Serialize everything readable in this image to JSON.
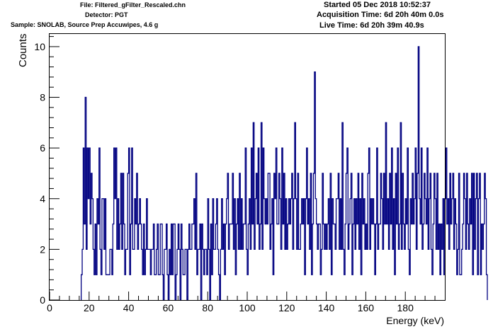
{
  "header": {
    "file": "File: Filtered_gFilter_Rescaled.chn",
    "detector": "Detector: PGT",
    "sample": "Sample: SNOLAB, Source Prep Accuwipes, 4.6 g",
    "started": "Started 05 Dec 2018 10:52:37",
    "acquisition_time": "Acquisition Time: 6d 20h 40m 0.0s",
    "live_time": "Live Time: 6d 20h 39m 40.9s"
  },
  "chart_data": {
    "type": "histogram-step",
    "xlabel": "Energy (keV)",
    "ylabel": "Counts",
    "xlim": [
      0,
      200
    ],
    "ylim": [
      0,
      10.5
    ],
    "x_major_ticks": [
      0,
      20,
      40,
      60,
      80,
      100,
      120,
      140,
      160,
      180
    ],
    "y_major_ticks": [
      0,
      2,
      4,
      6,
      8,
      10
    ],
    "grid": false,
    "line_color": "#000080",
    "bin_width_kev": 0.5,
    "bin_start_kev": 16,
    "counts": [
      1,
      2,
      6,
      3,
      8,
      2,
      6,
      4,
      6,
      3,
      5,
      4,
      2,
      1,
      3,
      1,
      4,
      3,
      6,
      2,
      1,
      4,
      4,
      2,
      4,
      1,
      1,
      1,
      1,
      2,
      2,
      1,
      3,
      6,
      4,
      6,
      2,
      4,
      2,
      3,
      5,
      2,
      5,
      3,
      1,
      2,
      2,
      5,
      6,
      1,
      3,
      6,
      2,
      2,
      4,
      3,
      5,
      2,
      3,
      4,
      3,
      2,
      1,
      3,
      1,
      2,
      4,
      2,
      2,
      2,
      1,
      2,
      2,
      3,
      1,
      1,
      2,
      3,
      1,
      1,
      3,
      3,
      1,
      0,
      2,
      2,
      3,
      1,
      0,
      2,
      1,
      3,
      1,
      3,
      3,
      0,
      1,
      2,
      3,
      2,
      0,
      3,
      2,
      1,
      1,
      2,
      2,
      0,
      2,
      3,
      2,
      2,
      3,
      3,
      4,
      2,
      5,
      1,
      2,
      2,
      3,
      0,
      3,
      2,
      1,
      2,
      2,
      1,
      4,
      2,
      0,
      3,
      1,
      4,
      2,
      2,
      3,
      4,
      2,
      1,
      0,
      2,
      4,
      2,
      3,
      1,
      3,
      4,
      5,
      2,
      3,
      3,
      3,
      5,
      2,
      4,
      1,
      3,
      4,
      2,
      5,
      2,
      4,
      2,
      3,
      3,
      6,
      2,
      1,
      3,
      4,
      2,
      6,
      3,
      7,
      2,
      4,
      5,
      3,
      6,
      2,
      3,
      7,
      2,
      6,
      4,
      3,
      4,
      3,
      5,
      5,
      2,
      3,
      4,
      1,
      5,
      4,
      6,
      3,
      3,
      5,
      4,
      2,
      6,
      3,
      5,
      2,
      4,
      2,
      3,
      4,
      3,
      4,
      5,
      2,
      4,
      7,
      4,
      2,
      5,
      2,
      2,
      3,
      4,
      3,
      4,
      1,
      4,
      6,
      3,
      4,
      2,
      5,
      1,
      3,
      5,
      9,
      4,
      3,
      2,
      3,
      3,
      1,
      2,
      5,
      3,
      2,
      3,
      2,
      3,
      4,
      2,
      5,
      1,
      4,
      3,
      3,
      2,
      4,
      4,
      5,
      2,
      4,
      2,
      7,
      2,
      1,
      3,
      5,
      6,
      2,
      3,
      4,
      5,
      1,
      3,
      4,
      2,
      4,
      3,
      5,
      2,
      4,
      1,
      5,
      3,
      4,
      2,
      3,
      2,
      5,
      6,
      2,
      4,
      3,
      4,
      3,
      1,
      3,
      6,
      2,
      3,
      3,
      5,
      4,
      2,
      5,
      3,
      7,
      3,
      4,
      2,
      5,
      3,
      6,
      2,
      4,
      1,
      5,
      3,
      6,
      2,
      3,
      7,
      2,
      5,
      3,
      2,
      4,
      3,
      6,
      2,
      1,
      4,
      3,
      5,
      3,
      4,
      6,
      2,
      5,
      10,
      4,
      3,
      6,
      2,
      3,
      5,
      4,
      3,
      6,
      2,
      4,
      5,
      2,
      1,
      3,
      5,
      4,
      2,
      5,
      2,
      3,
      1,
      3,
      2,
      4,
      1,
      4,
      6,
      3,
      4,
      2,
      5,
      3,
      4,
      5,
      2,
      4,
      3,
      1,
      2,
      5,
      1,
      1,
      2,
      3,
      5,
      4,
      2,
      5,
      3,
      2,
      4,
      3,
      5,
      1,
      5,
      2,
      4,
      5,
      1,
      4,
      5,
      1,
      3,
      2,
      3,
      5,
      4,
      1
    ]
  }
}
